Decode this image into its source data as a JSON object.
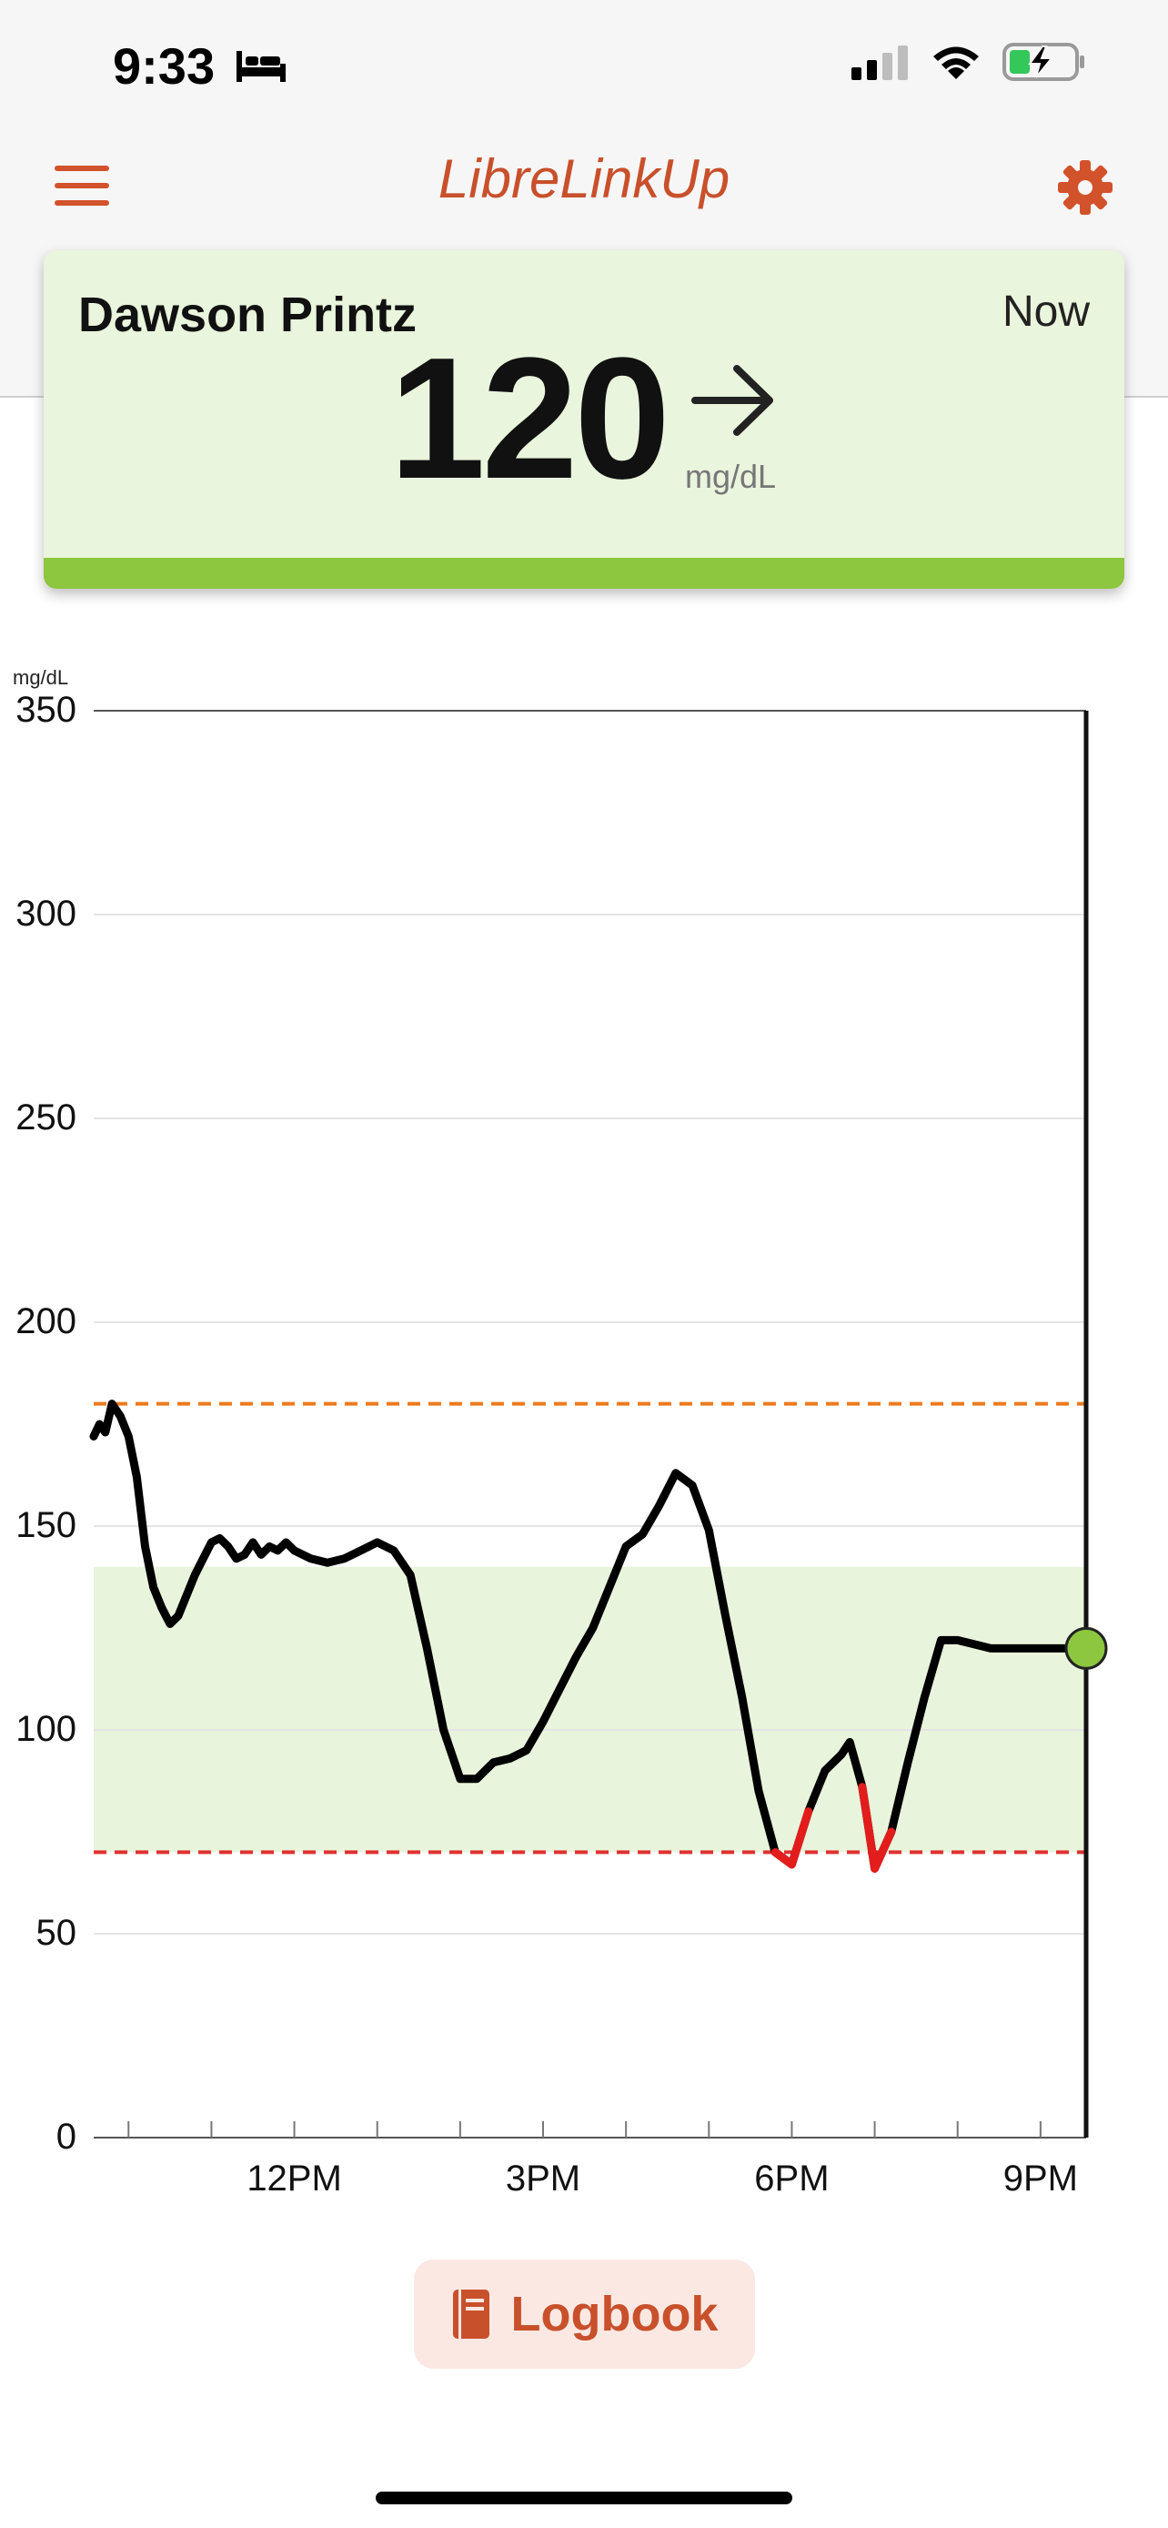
{
  "status_bar": {
    "time": "9:33"
  },
  "header": {
    "title": "LibreLinkUp"
  },
  "patient_card": {
    "name": "Dawson Printz",
    "time_label": "Now",
    "value": "120",
    "unit": "mg/dL",
    "trend": "right-arrow-icon",
    "status_color": "#8dc63f"
  },
  "chart_data": {
    "type": "line",
    "ylabel": "mg/dL",
    "ylim": [
      0,
      350
    ],
    "y_ticks": [
      350,
      300,
      250,
      200,
      150,
      100,
      50,
      0
    ],
    "x_tick_labels": [
      "12PM",
      "3PM",
      "6PM",
      "9PM"
    ],
    "x_range_hours": [
      9.58,
      21.55
    ],
    "x_tick_hours": [
      12,
      15,
      18,
      21
    ],
    "target_range": [
      70,
      140
    ],
    "high_threshold": 180,
    "low_threshold": 70,
    "colors": {
      "line": "#000000",
      "low": "#e31c1c",
      "high_line": "#ee7a1c",
      "low_line": "#e03030",
      "band": "#e8f4dc",
      "current": "#8dc63f"
    },
    "series": [
      {
        "x": [
          9.58,
          9.65,
          9.72,
          9.8,
          9.9,
          10.0,
          10.1,
          10.2,
          10.3,
          10.4,
          10.5,
          10.6,
          10.7,
          10.8,
          10.9,
          11.0,
          11.1,
          11.2,
          11.3,
          11.4,
          11.5,
          11.6,
          11.7,
          11.8,
          11.9,
          12.0,
          12.2,
          12.4,
          12.6,
          12.8,
          13.0,
          13.2,
          13.4,
          13.6,
          13.8,
          14.0,
          14.2,
          14.4,
          14.6,
          14.8,
          15.0,
          15.2,
          15.4,
          15.6,
          15.8,
          16.0,
          16.2,
          16.4,
          16.6,
          16.8,
          17.0,
          17.2,
          17.4,
          17.6,
          17.8,
          18.0,
          18.2,
          18.4,
          18.6,
          18.7,
          18.85,
          19.0,
          19.2,
          19.4,
          19.6,
          19.8,
          20.0,
          20.2,
          20.4,
          20.6,
          20.8,
          21.0,
          21.2,
          21.35,
          21.55
        ],
        "y": [
          172,
          175,
          173,
          180,
          177,
          172,
          162,
          145,
          135,
          130,
          126,
          128,
          133,
          138,
          142,
          146,
          147,
          145,
          142,
          143,
          146,
          143,
          145,
          144,
          146,
          144,
          142,
          141,
          142,
          144,
          146,
          144,
          138,
          120,
          100,
          88,
          88,
          92,
          93,
          95,
          102,
          110,
          118,
          125,
          135,
          145,
          148,
          155,
          163,
          160,
          149,
          128,
          108,
          85,
          70,
          67,
          80,
          90,
          94,
          97,
          86,
          66,
          75,
          92,
          108,
          122,
          122,
          121,
          120,
          120,
          120,
          120,
          120,
          120,
          120
        ]
      }
    ]
  },
  "logbook": {
    "label": "Logbook"
  }
}
